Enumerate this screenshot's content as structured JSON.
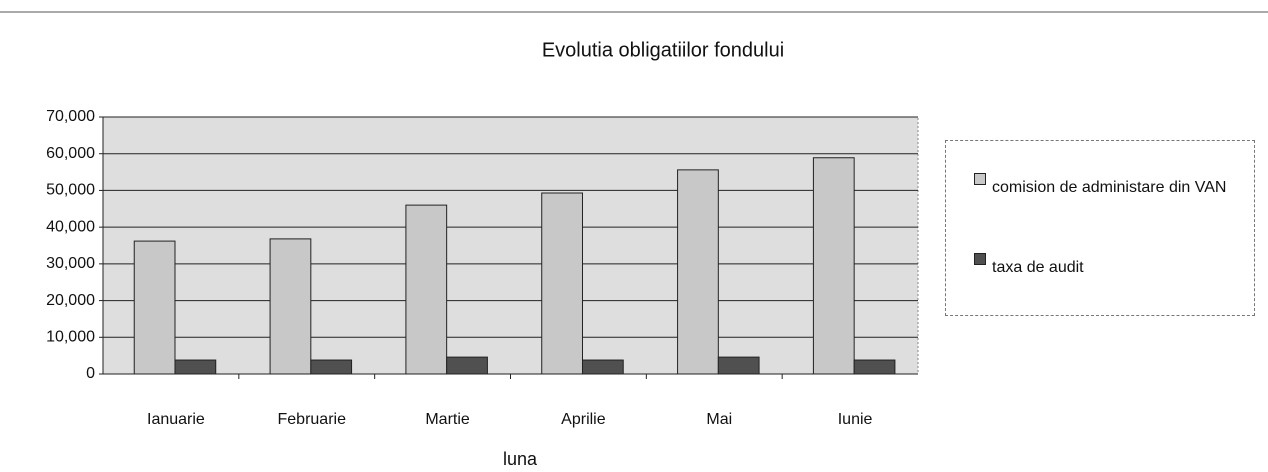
{
  "chart_data": {
    "type": "bar",
    "title": "Evolutia obligatiilor fondului",
    "x_label": "luna",
    "categories": [
      "Ianuarie",
      "Februarie",
      "Martie",
      "Aprilie",
      "Mai",
      "Iunie"
    ],
    "series": [
      {
        "name": "comision de administare din VAN",
        "color": "#c8c8c8",
        "values": [
          36200,
          36800,
          46000,
          49300,
          55600,
          58900
        ]
      },
      {
        "name": "taxa de audit",
        "color": "#505050",
        "values": [
          3800,
          3800,
          4600,
          3800,
          4600,
          3800
        ]
      }
    ],
    "ylim": [
      0,
      70000
    ],
    "yticks": [
      0,
      {
        "value": 10000,
        "label": "10,000"
      },
      {
        "value": 20000,
        "label": "20,000"
      },
      {
        "value": 30000,
        "label": "30,000"
      },
      {
        "value": 40000,
        "label": "40,000"
      },
      {
        "value": 50000,
        "label": "50,000"
      },
      {
        "value": 60000,
        "label": "60,000"
      },
      {
        "value": 70000,
        "label": "70,000"
      }
    ],
    "grid": true,
    "legend": "right"
  }
}
